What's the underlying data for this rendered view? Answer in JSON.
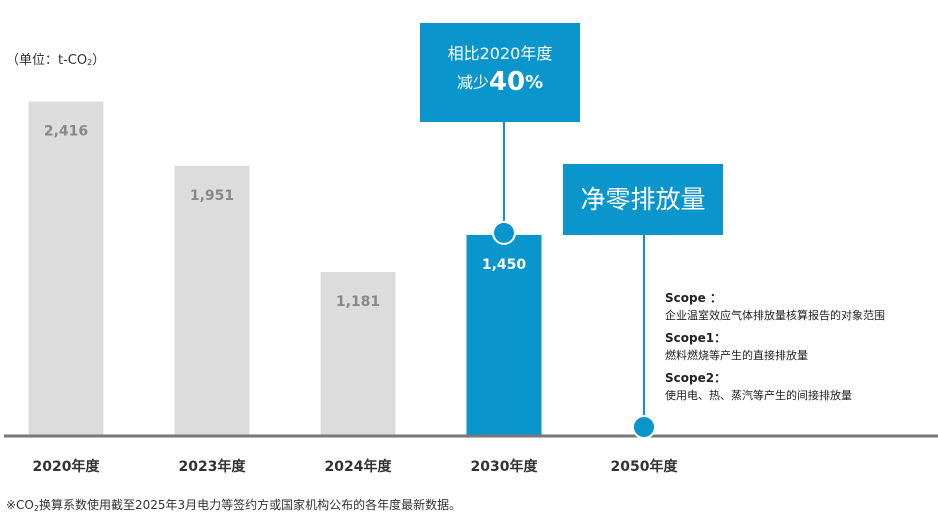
{
  "unit": {
    "prefix": "（单位：t-CO",
    "subscript": "2",
    "suffix": "）"
  },
  "chart_data": {
    "type": "bar",
    "categories": [
      "2020年度",
      "2023年度",
      "2024年度",
      "2030年度",
      "2050年度"
    ],
    "values": [
      2416,
      1951,
      1181,
      1450,
      0
    ],
    "value_labels": [
      "2,416",
      "1,951",
      "1,181",
      "1,450",
      ""
    ],
    "highlight_index": 3,
    "ylim": [
      0,
      2500
    ],
    "grid": false,
    "colors": {
      "bar": "#dcdcdc",
      "bar_label": "#888888",
      "highlight_bar": "#0a96cd",
      "highlight_label": "#ffffff",
      "axis": "#777777",
      "marker": "#0a96cd"
    }
  },
  "callout_2030": {
    "line1": "相比2020年度",
    "line2_prefix": "减少",
    "line2_value": "40",
    "line2_unit": "%"
  },
  "callout_2050": {
    "label": "净零排放量"
  },
  "scope": {
    "scope_title": "Scope ：",
    "scope_desc": "企业温室效应气体排放量核算报告的对象范围",
    "scope1_title": "Scope1：",
    "scope1_desc": "燃料燃烧等产生的直接排放量",
    "scope2_title": "Scope2：",
    "scope2_desc": "使用电、热、蒸汽等产生的间接排放量"
  },
  "footnote": {
    "prefix": "※CO",
    "subscript": "2",
    "suffix": "换算系数使用截至2025年3月电力等签约方或国家机构公布的各年度最新数据。"
  }
}
